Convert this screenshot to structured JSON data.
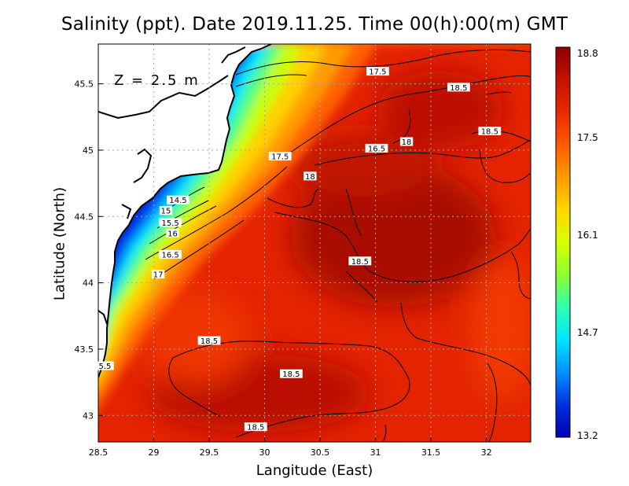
{
  "title": "Salinity (ppt). Date 2019.11.25. Time 00(h):00(m) GMT",
  "depth_label": "Z = 2.5 m",
  "map": {
    "xlabel": "Langitude (East)",
    "ylabel": "Latitude (North)",
    "x_ticks": [
      "28.5",
      "29",
      "29.5",
      "30",
      "30.5",
      "31",
      "31.5",
      "32"
    ],
    "y_ticks": [
      "43",
      "43.5",
      "44",
      "44.5",
      "45",
      "45.5"
    ],
    "x_range": [
      28.5,
      32.4
    ],
    "y_range": [
      42.8,
      45.8
    ],
    "grid": true,
    "contour_labels": [
      {
        "text": "17.5",
        "lon": 31.02,
        "lat": 45.58
      },
      {
        "text": "18.5",
        "lon": 31.75,
        "lat": 45.46
      },
      {
        "text": "18.5",
        "lon": 32.03,
        "lat": 45.13
      },
      {
        "text": "18",
        "lon": 31.28,
        "lat": 45.05
      },
      {
        "text": "16.5",
        "lon": 31.01,
        "lat": 45.0
      },
      {
        "text": "17.5",
        "lon": 30.14,
        "lat": 44.94
      },
      {
        "text": "18",
        "lon": 30.41,
        "lat": 44.79
      },
      {
        "text": "14.5",
        "lon": 29.22,
        "lat": 44.61
      },
      {
        "text": "15",
        "lon": 29.11,
        "lat": 44.53
      },
      {
        "text": "15.5",
        "lon": 29.15,
        "lat": 44.44
      },
      {
        "text": "16",
        "lon": 29.17,
        "lat": 44.36
      },
      {
        "text": "16.5",
        "lon": 29.15,
        "lat": 44.2
      },
      {
        "text": "17",
        "lon": 29.04,
        "lat": 44.05
      },
      {
        "text": "18.5",
        "lon": 30.86,
        "lat": 44.15
      },
      {
        "text": "18.5",
        "lon": 29.5,
        "lat": 43.55
      },
      {
        "text": "18.5",
        "lon": 30.24,
        "lat": 43.3
      },
      {
        "text": "18.5",
        "lon": 29.92,
        "lat": 42.9
      },
      {
        "text": "5.5",
        "lon": 28.56,
        "lat": 43.36
      }
    ]
  },
  "colorbar": {
    "ticks": [
      "18.8",
      "17.5",
      "16.1",
      "14.7",
      "13.2"
    ],
    "min": 13.2,
    "max": 18.8,
    "colors": [
      "#8b0000",
      "#c41200",
      "#e82a00",
      "#ff5a00",
      "#ff9a00",
      "#ffd600",
      "#d8ff00",
      "#8cff30",
      "#30ffb0",
      "#00e6ff",
      "#0090ff",
      "#0030e0",
      "#0000b0"
    ]
  }
}
